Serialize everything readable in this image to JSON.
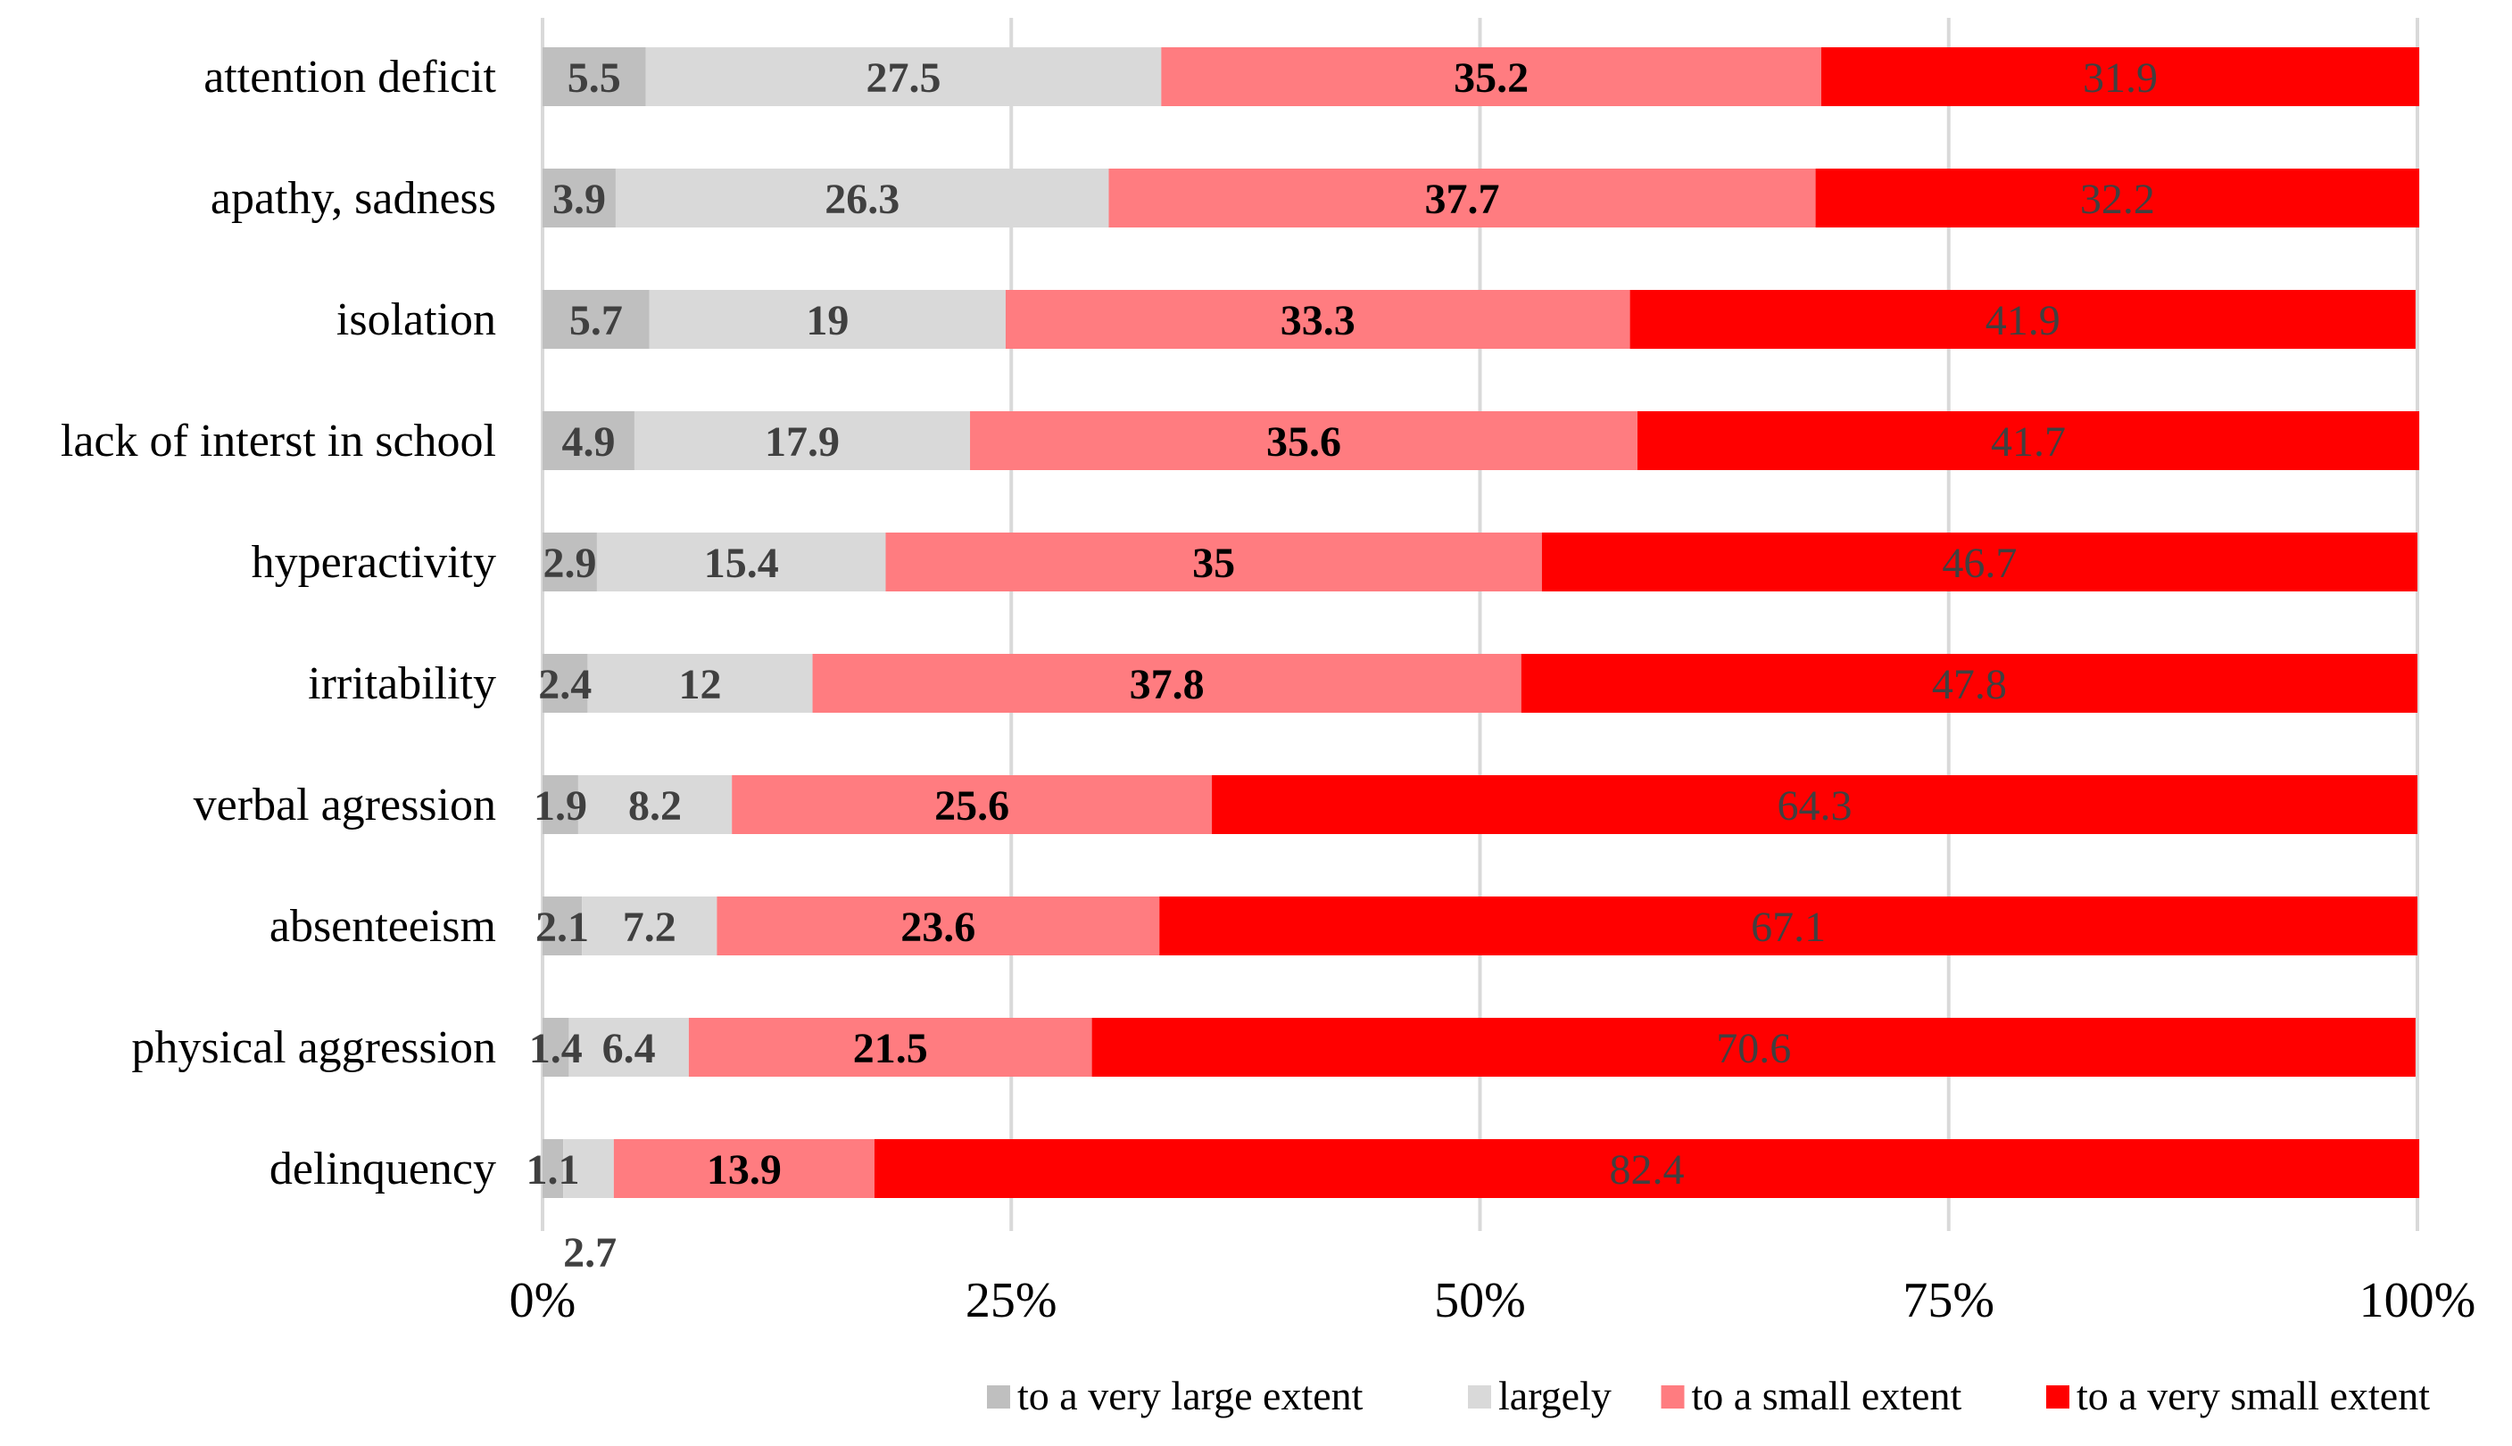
{
  "chart_data": {
    "type": "bar",
    "orientation": "horizontal",
    "stacked": "percent",
    "categories": [
      "attention deficit",
      "apathy, sadness",
      "isolation",
      "lack of interst in school",
      "hyperactivity",
      "irritability",
      "verbal agression",
      "absenteeism",
      "physical aggression",
      "delinquency"
    ],
    "series": [
      {
        "name": "to a very large extent",
        "color": "#bfbfbf",
        "values": [
          5.5,
          3.9,
          5.7,
          4.9,
          2.9,
          2.4,
          1.9,
          2.1,
          1.4,
          1.1
        ]
      },
      {
        "name": "largely",
        "color": "#d9d9d9",
        "values": [
          27.5,
          26.3,
          19,
          17.9,
          15.4,
          12,
          8.2,
          7.2,
          6.4,
          2.7
        ]
      },
      {
        "name": "to a small extent",
        "color": "#ff7c80",
        "values": [
          35.2,
          37.7,
          33.3,
          35.6,
          35,
          37.8,
          25.6,
          23.6,
          21.5,
          13.9
        ]
      },
      {
        "name": "to a very small extent",
        "color": "#ff0000",
        "values": [
          31.9,
          32.2,
          41.9,
          41.7,
          46.7,
          47.8,
          64.3,
          67.1,
          70.6,
          82.4
        ]
      }
    ],
    "x_ticks": [
      "0%",
      "25%",
      "50%",
      "75%",
      "100%"
    ],
    "xlim": [
      0,
      100
    ],
    "grid": true,
    "legend_position": "bottom-right",
    "title": "",
    "xlabel": "",
    "ylabel": ""
  }
}
